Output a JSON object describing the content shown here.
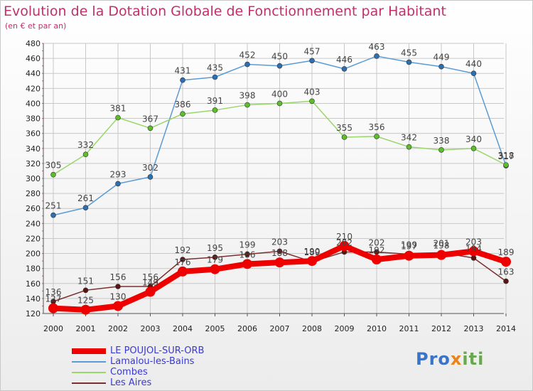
{
  "header": {
    "title": "Evolution de la Dotation Globale de Fonctionnement par Habitant",
    "subtitle": "(en € et par an)"
  },
  "colors": {
    "title": "#c0306a",
    "grid": "#c8c8c8",
    "axis": "#555555",
    "legend_text": "#3a3ad0"
  },
  "chart_data": {
    "type": "line",
    "title": "Evolution de la Dotation Globale de Fonctionnement par Habitant",
    "subtitle": "(en € et par an)",
    "xlabel": "",
    "ylabel": "",
    "x": [
      "2000",
      "2001",
      "2002",
      "2003",
      "2004",
      "2005",
      "2006",
      "2007",
      "2008",
      "2009",
      "2010",
      "2011",
      "2012",
      "2013",
      "2014"
    ],
    "ylim": [
      120,
      480
    ],
    "yticks": [
      120,
      140,
      160,
      180,
      200,
      220,
      240,
      260,
      280,
      300,
      320,
      340,
      360,
      380,
      400,
      420,
      440,
      460,
      480
    ],
    "grid": true,
    "series": [
      {
        "name": "Lamalou-les-Bains",
        "color": "#5b9bd5",
        "marker_color": "#2e6fb0",
        "values": [
          251,
          261,
          293,
          302,
          431,
          435,
          452,
          450,
          457,
          446,
          463,
          455,
          449,
          440,
          317
        ],
        "labels": [
          "251",
          "261",
          "293",
          "302",
          "431",
          "435",
          "452",
          "450",
          "457",
          "446",
          "463",
          "455",
          "449",
          "440",
          "317"
        ]
      },
      {
        "name": "Combes",
        "color": "#99d66b",
        "marker_color": "#5bbf2a",
        "values": [
          305,
          332,
          381,
          367,
          386,
          391,
          398,
          400,
          403,
          355,
          356,
          342,
          338,
          340,
          318
        ],
        "labels": [
          "305",
          "332",
          "381",
          "367",
          "386",
          "391",
          "398",
          "400",
          "403",
          "355",
          "356",
          "342",
          "338",
          "340",
          "318"
        ]
      },
      {
        "name": "Les Aires",
        "color": "#7b2f2f",
        "marker_color": "#5a1414",
        "values": [
          136,
          151,
          156,
          156,
          192,
          195,
          199,
          203,
          189,
          202,
          202,
          199,
          201,
          194,
          163
        ],
        "labels": [
          "136",
          "151",
          "156",
          "156",
          "192",
          "195",
          "199",
          "203",
          "189",
          "202",
          "202",
          "199",
          "201",
          "194",
          "163"
        ]
      },
      {
        "name": "LE POUJOL-SUR-ORB",
        "color": "#ee0000",
        "marker_color": "#ee0000",
        "values": [
          127,
          125,
          130,
          149,
          176,
          179,
          186,
          188,
          190,
          210,
          192,
          197,
          198,
          203,
          189
        ],
        "labels": [
          "127",
          "125",
          "130",
          "149",
          "176",
          "179",
          "186",
          "188",
          "190",
          "210",
          "192",
          "197",
          "198",
          "203",
          "189"
        ]
      }
    ],
    "legend": [
      {
        "name": "LE POUJOL-SUR-ORB",
        "color": "#ee0000"
      },
      {
        "name": "Lamalou-les-Bains",
        "color": "#5b9bd5"
      },
      {
        "name": "Combes",
        "color": "#99d66b"
      },
      {
        "name": "Les Aires",
        "color": "#7b2f2f"
      }
    ],
    "legend_position": "bottom-left"
  },
  "logo": {
    "p1": "Pro",
    "p2": "x",
    "p3": "iti"
  }
}
